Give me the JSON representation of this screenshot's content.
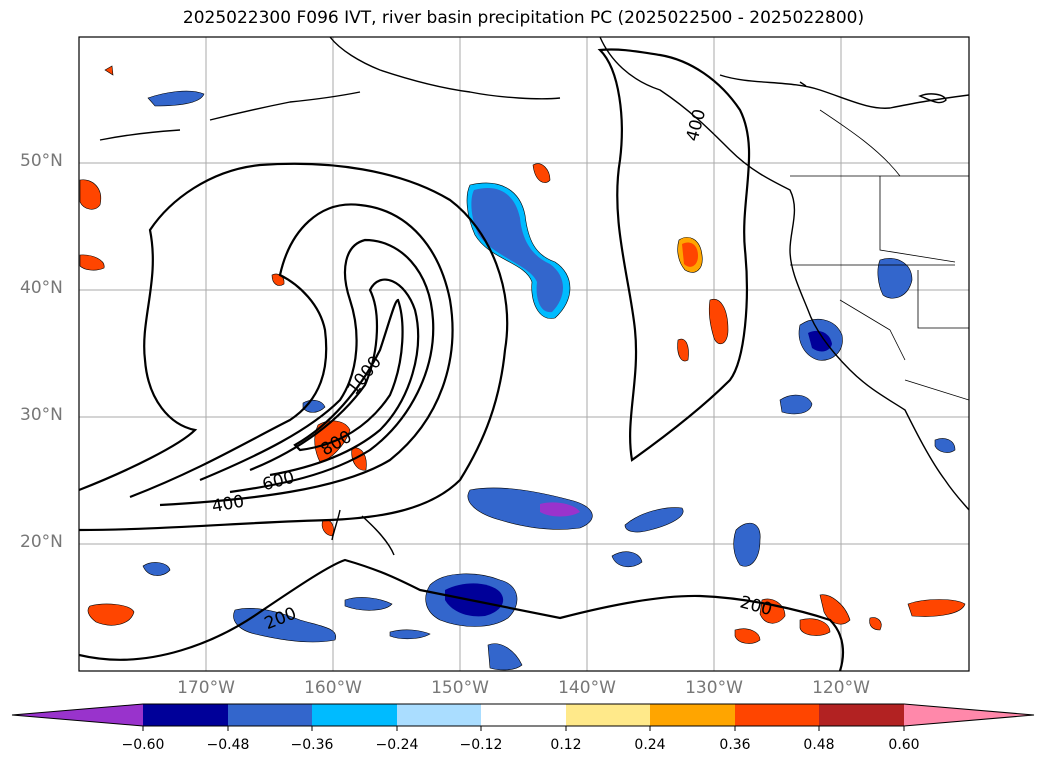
{
  "title": "2025022300 F096 IVT, river basin precipitation PC (2025022500 - 2025022800)",
  "lat_labels": [
    "50°N",
    "40°N",
    "30°N",
    "20°N"
  ],
  "lon_labels": [
    "170°W",
    "160°W",
    "150°W",
    "140°W",
    "130°W",
    "120°W"
  ],
  "contour_labels": [
    "1000",
    "800",
    "600",
    "400",
    "200",
    "200",
    "400"
  ],
  "colorbar": {
    "ticks": [
      "−0.60",
      "−0.48",
      "−0.36",
      "−0.24",
      "−0.12",
      "0.12",
      "0.24",
      "0.36",
      "0.48",
      "0.60"
    ],
    "colors": [
      "#9933cc",
      "#000099",
      "#3366cc",
      "#00bbff",
      "#aaddff",
      "#ffffff",
      "#ffe98a",
      "#ffa500",
      "#ff4500",
      "#b22222",
      "#ff88aa"
    ]
  }
}
